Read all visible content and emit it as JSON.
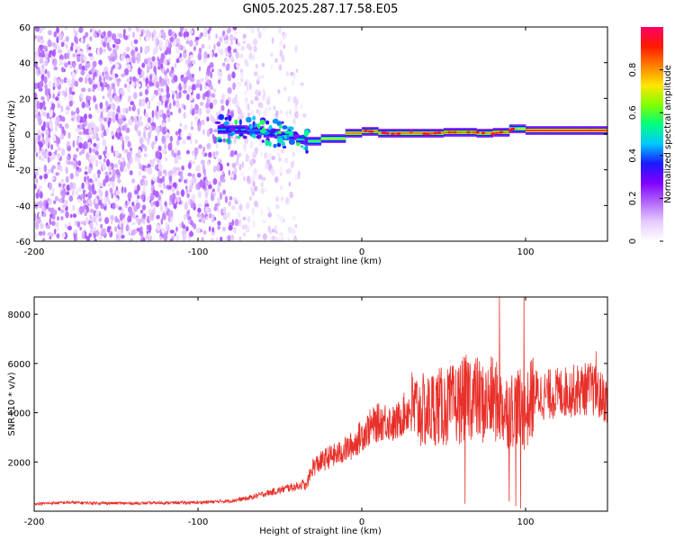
{
  "figure_title": "GN05.2025.287.17.58.E05",
  "chart_data": [
    {
      "type": "heatmap",
      "title": "",
      "xlabel": "Height of straight line (km)",
      "ylabel": "Frequency (Hz)",
      "xlim": [
        -200,
        150
      ],
      "ylim": [
        -60,
        60
      ],
      "x_ticks": [
        -200,
        -100,
        0,
        100
      ],
      "y_ticks": [
        -60,
        -40,
        -20,
        0,
        20,
        40,
        60
      ],
      "colorbar": {
        "label": "Normalized spectral amplitude",
        "range": [
          0,
          1
        ],
        "ticks": [
          0.0,
          0.2,
          0.4,
          0.6,
          0.8
        ],
        "colors": [
          "#ffffff",
          "#e6ccff",
          "#b266ff",
          "#7f00ff",
          "#1a1aff",
          "#00c8ff",
          "#00ff80",
          "#80ff00",
          "#ffe600",
          "#ff8000",
          "#ff1a00",
          "#ff0066"
        ]
      },
      "noise_region_x": [
        -200,
        -35
      ],
      "ridge": {
        "x": [
          -88,
          -80,
          -70,
          -60,
          -50,
          -40,
          -35,
          -25,
          -10,
          0,
          10,
          20,
          30,
          40,
          50,
          60,
          70,
          80,
          90,
          95,
          100,
          110,
          120,
          130,
          140,
          150
        ],
        "freq": [
          3,
          2,
          3,
          1,
          0,
          -2,
          -4,
          -4,
          -1,
          2,
          1,
          0,
          1,
          0,
          1,
          1,
          1,
          0,
          2,
          4,
          2,
          2,
          2,
          2,
          2,
          2
        ],
        "amplitude": [
          0.45,
          0.5,
          0.45,
          0.4,
          0.45,
          0.5,
          0.55,
          0.65,
          0.75,
          0.9,
          0.75,
          0.8,
          0.85,
          0.8,
          0.85,
          0.85,
          0.8,
          0.8,
          0.85,
          0.5,
          0.95,
          0.95,
          0.95,
          0.95,
          0.95,
          0.95
        ]
      }
    },
    {
      "type": "line",
      "title": "",
      "xlabel": "Height of straight line (km)",
      "ylabel": "SNR (10 * v/v)",
      "xlim": [
        -200,
        150
      ],
      "ylim": [
        0,
        8700
      ],
      "x_ticks": [
        -200,
        -100,
        0,
        100
      ],
      "y_ticks": [
        2000,
        4000,
        6000,
        8000
      ],
      "line_color": "#e8302a",
      "series": [
        {
          "x": [
            -200,
            -180,
            -160,
            -140,
            -120,
            -100,
            -80,
            -70,
            -60,
            -50,
            -45,
            -40,
            -36,
            -34,
            -30,
            -25,
            -20,
            -15,
            -10,
            -5,
            0,
            5,
            10,
            15,
            20,
            25,
            30,
            35,
            40,
            45,
            50,
            55,
            60,
            65,
            70,
            75,
            80,
            85,
            90,
            95,
            100,
            105,
            110,
            120,
            130,
            140,
            145,
            150
          ],
          "y": [
            300,
            350,
            330,
            320,
            340,
            350,
            420,
            520,
            700,
            850,
            950,
            1000,
            1100,
            1000,
            1800,
            2000,
            2200,
            2300,
            2500,
            2700,
            3100,
            3400,
            3600,
            3700,
            3500,
            3900,
            4200,
            4100,
            4000,
            4300,
            4200,
            4300,
            4400,
            4700,
            4600,
            4300,
            4600,
            4200,
            4100,
            4300,
            3900,
            4800,
            4700,
            4800,
            4900,
            5000,
            4700,
            4500
          ],
          "spikes": [
            {
              "x": 66,
              "y": 6000
            },
            {
              "x": 84,
              "y": 8700
            },
            {
              "x": 99,
              "y": 8700
            },
            {
              "x": 143,
              "y": 6500
            }
          ],
          "dips": [
            {
              "x": 63,
              "y": 300
            },
            {
              "x": 90,
              "y": 400
            },
            {
              "x": 94,
              "y": 200
            },
            {
              "x": 97,
              "y": 100
            }
          ]
        }
      ]
    }
  ]
}
